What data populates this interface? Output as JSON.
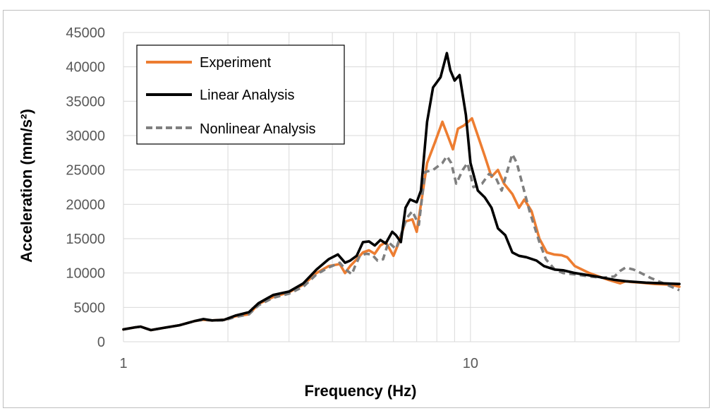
{
  "chart_data": {
    "type": "line",
    "xlabel": "Frequency (Hz)",
    "ylabel": "Acceleration (mm/s²)",
    "x_scale": "log",
    "xlim": [
      1,
      40
    ],
    "ylim": [
      0,
      45000
    ],
    "x_ticks": [
      {
        "value": 1,
        "label": "1"
      },
      {
        "value": 10,
        "label": "10"
      }
    ],
    "x_minor_gridlines": [
      2,
      3,
      4,
      5,
      6,
      7,
      8,
      9,
      20,
      30
    ],
    "y_ticks": [
      0,
      5000,
      10000,
      15000,
      20000,
      25000,
      30000,
      35000,
      40000,
      45000
    ],
    "grid": true,
    "legend_position": "top-left",
    "series": [
      {
        "name": "Experiment",
        "color": "#ed7d31",
        "dash": "solid",
        "points": [
          [
            1,
            1800
          ],
          [
            1.08,
            2100
          ],
          [
            1.12,
            2200
          ],
          [
            1.2,
            1700
          ],
          [
            1.3,
            2000
          ],
          [
            1.45,
            2400
          ],
          [
            1.6,
            3000
          ],
          [
            1.7,
            3200
          ],
          [
            1.8,
            3100
          ],
          [
            1.95,
            3200
          ],
          [
            2.1,
            3700
          ],
          [
            2.3,
            4000
          ],
          [
            2.45,
            5500
          ],
          [
            2.7,
            6500
          ],
          [
            3.0,
            7200
          ],
          [
            3.3,
            8300
          ],
          [
            3.6,
            10000
          ],
          [
            3.9,
            11000
          ],
          [
            4.2,
            11300
          ],
          [
            4.35,
            10000
          ],
          [
            4.5,
            11000
          ],
          [
            4.7,
            12000
          ],
          [
            4.9,
            13000
          ],
          [
            5.1,
            13300
          ],
          [
            5.3,
            12800
          ],
          [
            5.5,
            14000
          ],
          [
            5.7,
            14500
          ],
          [
            6.0,
            12500
          ],
          [
            6.2,
            14300
          ],
          [
            6.5,
            17500
          ],
          [
            6.8,
            17800
          ],
          [
            7.0,
            16000
          ],
          [
            7.2,
            20000
          ],
          [
            7.5,
            26000
          ],
          [
            7.9,
            29000
          ],
          [
            8.3,
            32000
          ],
          [
            8.6,
            30000
          ],
          [
            8.9,
            28000
          ],
          [
            9.2,
            31000
          ],
          [
            9.6,
            31500
          ],
          [
            10.1,
            32500
          ],
          [
            10.5,
            30000
          ],
          [
            11,
            27000
          ],
          [
            11.5,
            24000
          ],
          [
            12,
            25000
          ],
          [
            12.5,
            23000
          ],
          [
            13.2,
            21500
          ],
          [
            13.8,
            19500
          ],
          [
            14.3,
            20700
          ],
          [
            15,
            19000
          ],
          [
            15.8,
            15000
          ],
          [
            16.6,
            13000
          ],
          [
            17.4,
            12700
          ],
          [
            18.3,
            12600
          ],
          [
            19,
            12300
          ],
          [
            20,
            11000
          ],
          [
            22,
            10000
          ],
          [
            25,
            9000
          ],
          [
            27,
            8500
          ],
          [
            28,
            8800
          ],
          [
            29,
            8700
          ],
          [
            31,
            8600
          ],
          [
            34,
            8400
          ],
          [
            38,
            8300
          ],
          [
            40,
            8000
          ]
        ]
      },
      {
        "name": "Linear Analysis",
        "color": "#000000",
        "dash": "solid",
        "points": [
          [
            1,
            1800
          ],
          [
            1.08,
            2100
          ],
          [
            1.12,
            2200
          ],
          [
            1.2,
            1700
          ],
          [
            1.3,
            2000
          ],
          [
            1.45,
            2400
          ],
          [
            1.6,
            3000
          ],
          [
            1.7,
            3300
          ],
          [
            1.8,
            3100
          ],
          [
            1.95,
            3200
          ],
          [
            2.1,
            3800
          ],
          [
            2.3,
            4300
          ],
          [
            2.45,
            5600
          ],
          [
            2.7,
            6800
          ],
          [
            3.0,
            7300
          ],
          [
            3.3,
            8500
          ],
          [
            3.6,
            10500
          ],
          [
            3.9,
            12000
          ],
          [
            4.15,
            12700
          ],
          [
            4.35,
            11500
          ],
          [
            4.5,
            11800
          ],
          [
            4.7,
            12500
          ],
          [
            4.9,
            14500
          ],
          [
            5.1,
            14600
          ],
          [
            5.3,
            14000
          ],
          [
            5.5,
            14800
          ],
          [
            5.7,
            14300
          ],
          [
            5.95,
            16000
          ],
          [
            6.1,
            15500
          ],
          [
            6.3,
            14500
          ],
          [
            6.5,
            19500
          ],
          [
            6.7,
            20700
          ],
          [
            7.0,
            20300
          ],
          [
            7.2,
            22000
          ],
          [
            7.5,
            32000
          ],
          [
            7.8,
            37000
          ],
          [
            8.2,
            38500
          ],
          [
            8.55,
            42000
          ],
          [
            8.75,
            39500
          ],
          [
            9.0,
            38000
          ],
          [
            9.3,
            38800
          ],
          [
            9.7,
            33000
          ],
          [
            10,
            26000
          ],
          [
            10.5,
            22000
          ],
          [
            11,
            21000
          ],
          [
            11.5,
            19500
          ],
          [
            12,
            16500
          ],
          [
            12.6,
            15500
          ],
          [
            13.2,
            13000
          ],
          [
            13.8,
            12500
          ],
          [
            14.5,
            12300
          ],
          [
            15.5,
            11800
          ],
          [
            16.3,
            11000
          ],
          [
            17.5,
            10500
          ],
          [
            18.5,
            10400
          ],
          [
            20,
            10000
          ],
          [
            23,
            9500
          ],
          [
            26,
            9000
          ],
          [
            28,
            8800
          ],
          [
            32,
            8600
          ],
          [
            36,
            8500
          ],
          [
            40,
            8400
          ]
        ]
      },
      {
        "name": "Nonlinear Analysis",
        "color": "#7f7f7f",
        "dash": "dashed",
        "points": [
          [
            1,
            1800
          ],
          [
            1.08,
            2100
          ],
          [
            1.12,
            2200
          ],
          [
            1.2,
            1700
          ],
          [
            1.3,
            2000
          ],
          [
            1.45,
            2400
          ],
          [
            1.6,
            3000
          ],
          [
            1.7,
            3200
          ],
          [
            1.8,
            3100
          ],
          [
            1.95,
            3100
          ],
          [
            2.1,
            3600
          ],
          [
            2.3,
            4000
          ],
          [
            2.45,
            5300
          ],
          [
            2.7,
            6400
          ],
          [
            3.0,
            7000
          ],
          [
            3.3,
            8000
          ],
          [
            3.6,
            9800
          ],
          [
            3.9,
            10800
          ],
          [
            4.2,
            11500
          ],
          [
            4.35,
            10600
          ],
          [
            4.55,
            9800
          ],
          [
            4.65,
            11000
          ],
          [
            4.8,
            12500
          ],
          [
            5.0,
            12800
          ],
          [
            5.2,
            12700
          ],
          [
            5.4,
            11800
          ],
          [
            5.6,
            12000
          ],
          [
            5.8,
            14500
          ],
          [
            6.1,
            13500
          ],
          [
            6.3,
            15500
          ],
          [
            6.55,
            18000
          ],
          [
            6.8,
            19000
          ],
          [
            7.1,
            17000
          ],
          [
            7.4,
            24700
          ],
          [
            7.8,
            25000
          ],
          [
            8.3,
            26000
          ],
          [
            8.55,
            27000
          ],
          [
            8.8,
            26000
          ],
          [
            9.1,
            23000
          ],
          [
            9.5,
            25000
          ],
          [
            9.8,
            26000
          ],
          [
            10.2,
            22500
          ],
          [
            10.8,
            23000
          ],
          [
            11.3,
            24400
          ],
          [
            11.8,
            24000
          ],
          [
            12.3,
            22000
          ],
          [
            12.8,
            25000
          ],
          [
            13.2,
            27300
          ],
          [
            13.6,
            26000
          ],
          [
            14.1,
            23000
          ],
          [
            14.8,
            19000
          ],
          [
            15.8,
            14500
          ],
          [
            16.5,
            12000
          ],
          [
            17.5,
            10500
          ],
          [
            18.5,
            10000
          ],
          [
            20,
            9800
          ],
          [
            22,
            9500
          ],
          [
            24,
            9300
          ],
          [
            26,
            9500
          ],
          [
            27,
            10300
          ],
          [
            28,
            10800
          ],
          [
            29.5,
            10500
          ],
          [
            31,
            10000
          ],
          [
            33,
            9300
          ],
          [
            36,
            8500
          ],
          [
            40,
            7500
          ]
        ]
      }
    ]
  }
}
